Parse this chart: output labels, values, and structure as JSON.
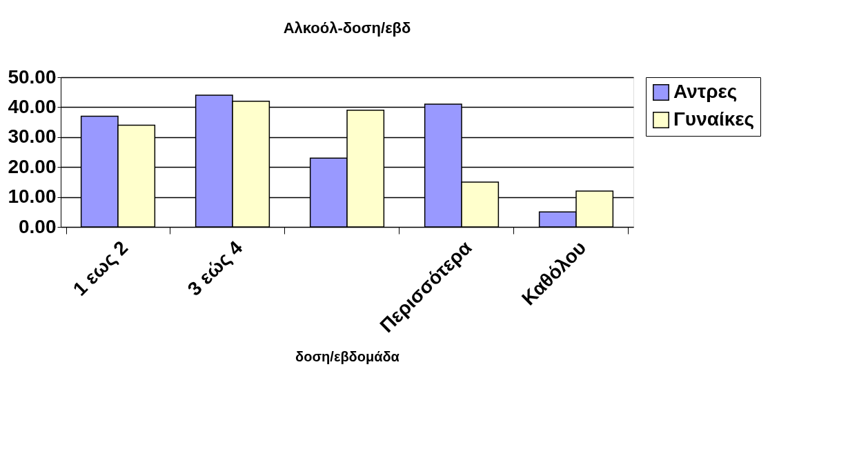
{
  "chart_data": {
    "type": "bar",
    "title": "Αλκοόλ-δοση/εβδ",
    "xlabel": "δοση/εβδομάδα",
    "categories": [
      "1 εως 2",
      "3 εώς 4",
      null,
      "Περισσότερα",
      "Καθόλου"
    ],
    "series": [
      {
        "name": "Αντρες",
        "color": "#9999ff",
        "values": [
          37,
          44,
          23,
          41,
          5
        ]
      },
      {
        "name": "Γυναίκες",
        "color": "#ffffcc",
        "values": [
          34,
          42,
          39,
          15,
          12
        ]
      }
    ],
    "ylim": [
      0,
      50
    ],
    "yticks": [
      {
        "value": 0,
        "label": "0.00"
      },
      {
        "value": 10,
        "label": "10.00"
      },
      {
        "value": 20,
        "label": "20.00"
      },
      {
        "value": 30,
        "label": "30.00"
      },
      {
        "value": 40,
        "label": "40.00"
      },
      {
        "value": 50,
        "label": "50.00"
      }
    ],
    "grid": "y",
    "legend": "right"
  }
}
